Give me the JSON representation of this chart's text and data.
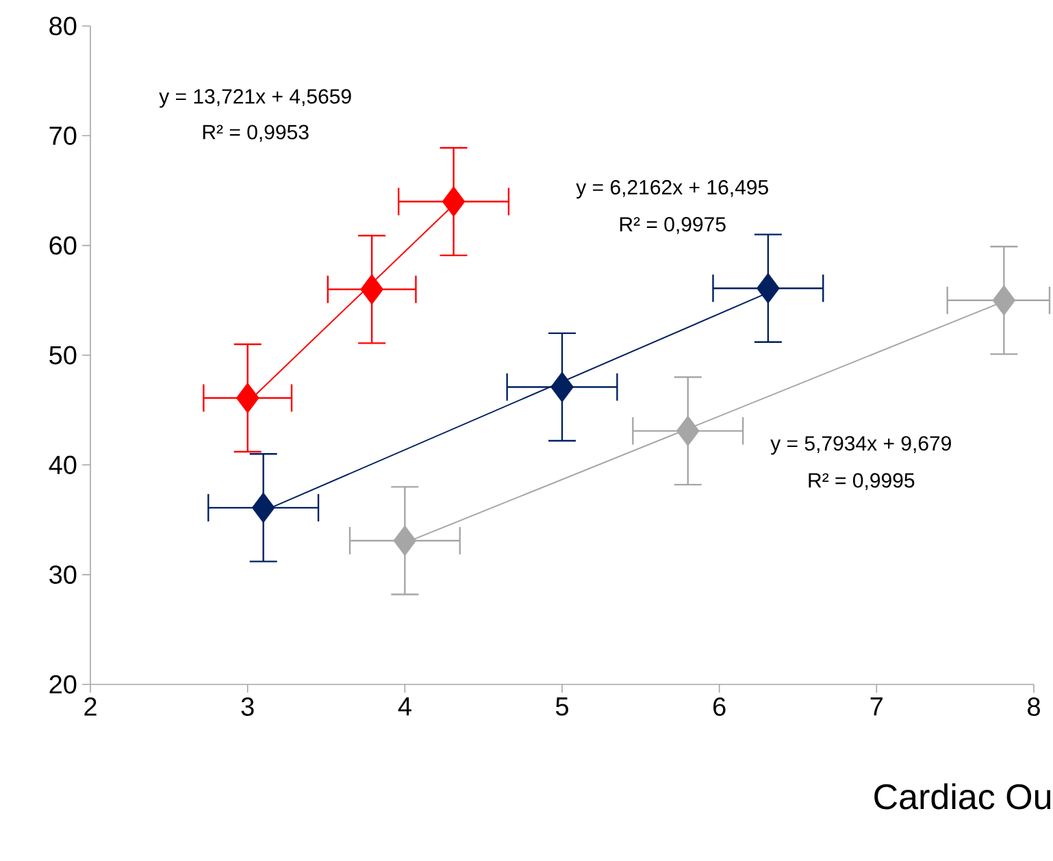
{
  "chart_data": {
    "type": "scatter",
    "xlabel": "Cardiac Ou",
    "xlim": [
      2,
      8
    ],
    "ylim": [
      20,
      80
    ],
    "xticks": [
      2,
      3,
      4,
      5,
      6,
      7,
      8
    ],
    "yticks": [
      20,
      30,
      40,
      50,
      60,
      70,
      80
    ],
    "grid": false,
    "series": [
      {
        "type": "scatter",
        "marker": "diamond",
        "color": "#ff0000",
        "x": [
          3.0,
          3.79,
          4.31
        ],
        "values": [
          46.1,
          56.0,
          64.0
        ],
        "errors": [
          4.9,
          4.9,
          4.9
        ],
        "xerrors": [
          0.28,
          0.28,
          0.35
        ]
      },
      {
        "type": "scatter",
        "marker": "diamond",
        "color": "#002060",
        "x": [
          3.1,
          5.0,
          6.31
        ],
        "values": [
          36.1,
          47.1,
          56.1
        ],
        "errors": [
          4.9,
          4.9,
          4.9
        ],
        "xerrors": [
          0.35,
          0.35,
          0.35
        ]
      },
      {
        "type": "scatter",
        "marker": "diamond",
        "color": "#a6a6a6",
        "x": [
          4.0,
          5.8,
          7.81
        ],
        "values": [
          33.1,
          43.1,
          55.0
        ],
        "errors": [
          4.9,
          4.9,
          4.9
        ],
        "xerrors": [
          0.35,
          0.35,
          [
            7.45,
            8.1
          ]
        ]
      },
      {
        "type": "line",
        "marker": "none",
        "color": "#ff0000",
        "x": [
          3.0,
          4.31
        ],
        "values": [
          45.7,
          63.7
        ]
      },
      {
        "type": "line",
        "marker": "none",
        "color": "#002060",
        "x": [
          3.1,
          6.31
        ],
        "values": [
          35.8,
          55.7
        ]
      },
      {
        "type": "line",
        "marker": "none",
        "color": "#a6a6a6",
        "x": [
          4.0,
          7.81
        ],
        "values": [
          32.9,
          54.9
        ]
      }
    ],
    "annotations": [
      "y = 13,721x + 4,5659",
      "R² = 0,9953",
      "y = 6,2162x + 16,495",
      "R² = 0,9975",
      "y = 5,7934x + 9,679",
      "R² = 0,9995"
    ]
  }
}
